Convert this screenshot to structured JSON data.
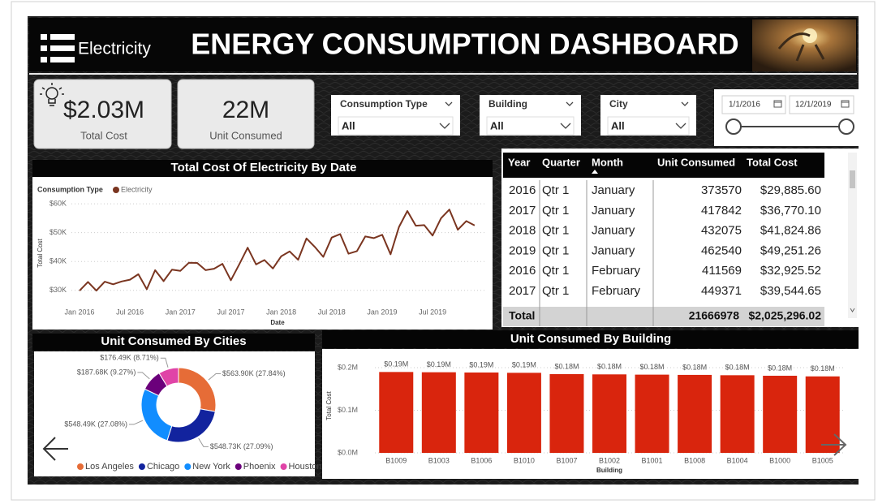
{
  "header": {
    "brand": "Electricity",
    "title": "ENERGY CONSUMPTION DASHBOARD"
  },
  "kpis": [
    {
      "value": "$2.03M",
      "label": "Total Cost"
    },
    {
      "value": "22M",
      "label": "Unit Consumed"
    }
  ],
  "slicers": [
    {
      "label": "Consumption Type",
      "value": "All"
    },
    {
      "label": "Building",
      "value": "All"
    },
    {
      "label": "City",
      "value": "All"
    }
  ],
  "date_range": {
    "start": "1/1/2016",
    "end": "12/1/2019"
  },
  "table": {
    "columns": [
      "Year",
      "Quarter",
      "Month",
      "Unit Consumed",
      "Total Cost"
    ],
    "rows": [
      [
        "2016",
        "Qtr 1",
        "January",
        "373570",
        "$29,885.60"
      ],
      [
        "2017",
        "Qtr 1",
        "January",
        "417842",
        "$36,770.10"
      ],
      [
        "2018",
        "Qtr 1",
        "January",
        "432075",
        "$41,824.86"
      ],
      [
        "2019",
        "Qtr 1",
        "January",
        "462540",
        "$49,251.26"
      ],
      [
        "2016",
        "Qtr 1",
        "February",
        "411569",
        "$32,925.52"
      ],
      [
        "2017",
        "Qtr 1",
        "February",
        "449371",
        "$39,544.65"
      ]
    ],
    "total": {
      "label": "Total",
      "unit_consumed": "21666978",
      "total_cost": "$2,025,296.02"
    }
  },
  "chart_data": [
    {
      "type": "line",
      "title": "Total Cost Of Electricity By Date",
      "legend_title": "Consumption Type",
      "xlabel": "Date",
      "ylabel": "Total Cost",
      "x": [
        "2016-01",
        "2016-02",
        "2016-03",
        "2016-04",
        "2016-05",
        "2016-06",
        "2016-07",
        "2016-08",
        "2016-09",
        "2016-10",
        "2016-11",
        "2016-12",
        "2017-01",
        "2017-02",
        "2017-03",
        "2017-04",
        "2017-05",
        "2017-06",
        "2017-07",
        "2017-08",
        "2017-09",
        "2017-10",
        "2017-11",
        "2017-12",
        "2018-01",
        "2018-02",
        "2018-03",
        "2018-04",
        "2018-05",
        "2018-06",
        "2018-07",
        "2018-08",
        "2018-09",
        "2018-10",
        "2018-11",
        "2018-12",
        "2019-01",
        "2019-02",
        "2019-03",
        "2019-04",
        "2019-05",
        "2019-06",
        "2019-07",
        "2019-08",
        "2019-09",
        "2019-10",
        "2019-11",
        "2019-12"
      ],
      "series": [
        {
          "name": "Electricity",
          "color": "#7a3520",
          "values": [
            29886,
            32926,
            29900,
            33000,
            32100,
            33100,
            33700,
            35600,
            30400,
            37000,
            33200,
            37200,
            36770,
            39545,
            39500,
            37000,
            37500,
            39200,
            33500,
            39000,
            44800,
            39000,
            40500,
            37600,
            41825,
            43500,
            40600,
            48000,
            45000,
            41600,
            48300,
            49500,
            42700,
            43600,
            48700,
            48100,
            49251,
            42500,
            52000,
            57500,
            52400,
            52600,
            49000,
            55000,
            58000,
            51000,
            54000,
            52500
          ]
        }
      ],
      "xticks": [
        {
          "value": "2016-01",
          "label": "Jan 2016"
        },
        {
          "value": "2016-07",
          "label": "Jul 2016"
        },
        {
          "value": "2017-01",
          "label": "Jan 2017"
        },
        {
          "value": "2017-07",
          "label": "Jul 2017"
        },
        {
          "value": "2018-01",
          "label": "Jan 2018"
        },
        {
          "value": "2018-07",
          "label": "Jul 2018"
        },
        {
          "value": "2019-01",
          "label": "Jan 2019"
        },
        {
          "value": "2019-07",
          "label": "Jul 2019"
        }
      ],
      "ylim": [
        26000,
        62000
      ],
      "yticks": [
        {
          "value": 30000,
          "label": "$30K"
        },
        {
          "value": 40000,
          "label": "$40K"
        },
        {
          "value": 50000,
          "label": "$50K"
        },
        {
          "value": 60000,
          "label": "$60K"
        }
      ],
      "grid": true
    },
    {
      "type": "donut",
      "title": "Unit Consumed By Cities",
      "categories": [
        "Los Angeles",
        "Chicago",
        "New York",
        "Phoenix",
        "Houston"
      ],
      "values": [
        563900,
        548730,
        548490,
        187680,
        176490
      ],
      "value_labels": [
        "$563.90K (27.84%)",
        "$548.73K (27.09%)",
        "$548.49K (27.08%)",
        "$187.68K (9.27%)",
        "$176.49K (8.71%)"
      ],
      "colors": [
        "#e66c37",
        "#12239e",
        "#118dff",
        "#6b007b",
        "#e044a7"
      ]
    },
    {
      "type": "bar",
      "title": "Unit Consumed By Building",
      "xlabel": "Building",
      "ylabel": "Total Cost",
      "categories": [
        "B1009",
        "B1003",
        "B1006",
        "B1010",
        "B1007",
        "B1002",
        "B1001",
        "B1008",
        "B1004",
        "B1000",
        "B1005"
      ],
      "values": [
        189800,
        189200,
        188600,
        187900,
        184800,
        184200,
        183600,
        183000,
        182200,
        181000,
        179500
      ],
      "value_labels": [
        "$0.19M",
        "$0.19M",
        "$0.19M",
        "$0.19M",
        "$0.18M",
        "$0.18M",
        "$0.18M",
        "$0.18M",
        "$0.18M",
        "$0.18M",
        "$0.18M"
      ],
      "color": "#d9250d",
      "ylim": [
        0,
        210000
      ],
      "yticks": [
        {
          "value": 0,
          "label": "$0.0M"
        },
        {
          "value": 100000,
          "label": "$0.1M"
        },
        {
          "value": 200000,
          "label": "$0.2M"
        }
      ],
      "grid": true
    }
  ]
}
